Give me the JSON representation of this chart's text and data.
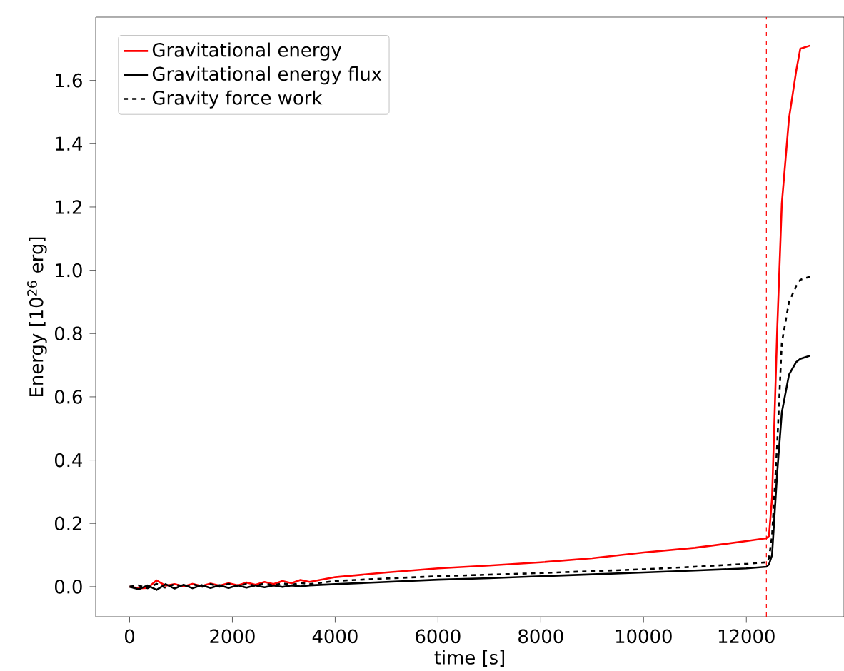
{
  "chart_data": {
    "type": "line",
    "xlabel": "time [s]",
    "ylabel": "Energy [10$^{26}$ erg]",
    "xlim": [
      -660,
      13900
    ],
    "ylim": [
      -0.095,
      1.8
    ],
    "xticks": [
      0,
      2000,
      4000,
      6000,
      8000,
      10000,
      12000
    ],
    "yticks": [
      {
        "value": 0,
        "label": "0.0"
      },
      0.2,
      0.4,
      0.6,
      0.8,
      {
        "value": 1,
        "label": "1.0"
      },
      1.2,
      1.4,
      1.6
    ],
    "grid": false,
    "legend": "top left",
    "marker": "none",
    "x": [
      0,
      175,
      350,
      525,
      700,
      875,
      1050,
      1225,
      1400,
      1575,
      1750,
      1925,
      2100,
      2275,
      2450,
      2625,
      2800,
      2975,
      3150,
      3325,
      3500,
      4000,
      5000,
      6000,
      7000,
      8000,
      9000,
      10000,
      11000,
      12000,
      12390,
      12440,
      12500,
      12600,
      12690,
      12830,
      12970,
      13050,
      13240
    ],
    "series": [
      {
        "name": "Gravitational energy",
        "color": "#ff0000",
        "line_style": "solid",
        "values": [
          0.0,
          -0.005,
          -0.004,
          0.02,
          0.003,
          0.008,
          0.001,
          0.009,
          0.002,
          0.01,
          0.003,
          0.011,
          0.004,
          0.013,
          0.006,
          0.015,
          0.008,
          0.018,
          0.011,
          0.021,
          0.015,
          0.03,
          0.045,
          0.058,
          0.067,
          0.077,
          0.09,
          0.108,
          0.123,
          0.144,
          0.153,
          0.16,
          0.28,
          0.81,
          1.21,
          1.48,
          1.63,
          1.7,
          1.71
        ]
      },
      {
        "name": "Gravitational energy flux",
        "color": "#000000",
        "line_style": "solid",
        "values": [
          0.0,
          -0.008,
          0.004,
          -0.01,
          0.008,
          -0.006,
          0.006,
          -0.005,
          0.005,
          -0.004,
          0.005,
          -0.004,
          0.004,
          -0.003,
          0.004,
          -0.002,
          0.004,
          -0.001,
          0.004,
          0.001,
          0.004,
          0.008,
          0.015,
          0.022,
          0.027,
          0.033,
          0.039,
          0.045,
          0.051,
          0.058,
          0.063,
          0.07,
          0.1,
          0.36,
          0.55,
          0.67,
          0.71,
          0.72,
          0.73
        ]
      },
      {
        "name": "Gravity force work",
        "color": "#000000",
        "line_style": "dashed",
        "values": [
          0.0,
          0.004,
          -0.005,
          0.009,
          -0.004,
          0.008,
          -0.002,
          0.008,
          -0.001,
          0.008,
          0.0,
          0.009,
          0.001,
          0.009,
          0.003,
          0.01,
          0.004,
          0.011,
          0.006,
          0.012,
          0.008,
          0.018,
          0.026,
          0.033,
          0.038,
          0.043,
          0.049,
          0.055,
          0.063,
          0.072,
          0.077,
          0.09,
          0.16,
          0.45,
          0.77,
          0.9,
          0.95,
          0.97,
          0.98
        ]
      }
    ],
    "ref_lines": [
      {
        "axis": "x",
        "value": 12390,
        "color": "#ff0000",
        "line_style": "dashed"
      }
    ]
  }
}
